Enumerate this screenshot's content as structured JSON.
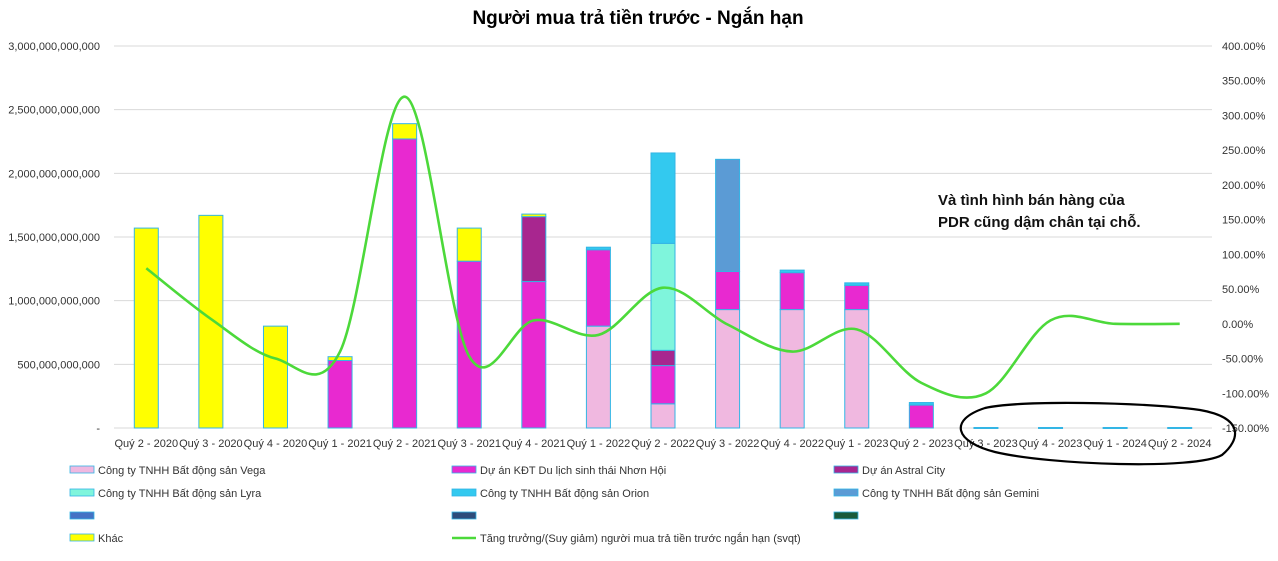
{
  "chart_data": {
    "type": "bar",
    "title": "Người mua trả tiền trước - Ngắn hạn",
    "categories": [
      "Quý 2 - 2020",
      "Quý 3 - 2020",
      "Quý 4 - 2020",
      "Quý 1 - 2021",
      "Quý 2 - 2021",
      "Quý 3 - 2021",
      "Quý 4 - 2021",
      "Quý 1 - 2022",
      "Quý 2 - 2022",
      "Quý 3 - 2022",
      "Quý 4 - 2022",
      "Quý 1 - 2023",
      "Quý 2 - 2023",
      "Quý 3 - 2023",
      "Quý 4 - 2023",
      "Quý 1 - 2024",
      "Quý 2 - 2024"
    ],
    "stacked": true,
    "ylim": [
      0,
      3000000000000
    ],
    "y_ticks": [
      "-",
      "500,000,000,000",
      "1,000,000,000,000",
      "1,500,000,000,000",
      "2,000,000,000,000",
      "2,500,000,000,000",
      "3,000,000,000,000"
    ],
    "y2lim": [
      -150,
      400
    ],
    "y2_ticks": [
      "-150.00%",
      "-100.00%",
      "-50.00%",
      "0.00%",
      "50.00%",
      "100.00%",
      "150.00%",
      "200.00%",
      "250.00%",
      "300.00%",
      "350.00%",
      "400.00%"
    ],
    "series": [
      {
        "name": "Công ty TNHH Bất động sản Vega",
        "color": "#f0b8e0",
        "values": [
          0,
          0,
          0,
          0,
          0,
          0,
          0,
          800000000000,
          190000000000,
          930000000000,
          930000000000,
          930000000000,
          0,
          0,
          0,
          0,
          0
        ]
      },
      {
        "name": "Dự án KĐT Du lịch sinh thái Nhơn Hội",
        "color": "#e829d0",
        "values": [
          0,
          0,
          0,
          530000000000,
          2270000000000,
          1310000000000,
          1150000000000,
          600000000000,
          300000000000,
          300000000000,
          290000000000,
          190000000000,
          180000000000,
          0,
          0,
          0,
          0
        ]
      },
      {
        "name": "Dự án Astral City",
        "color": "#a8268f",
        "values": [
          0,
          0,
          0,
          0,
          0,
          0,
          510000000000,
          0,
          120000000000,
          0,
          0,
          0,
          0,
          0,
          0,
          0,
          0
        ]
      },
      {
        "name": "Công ty TNHH Bất động sản Lyra",
        "color": "#7ff5dc",
        "values": [
          0,
          0,
          0,
          0,
          0,
          0,
          0,
          0,
          840000000000,
          0,
          0,
          0,
          0,
          0,
          0,
          0,
          0
        ]
      },
      {
        "name": "Công ty TNHH Bất động sản Orion",
        "color": "#33c9ef",
        "values": [
          0,
          0,
          0,
          0,
          0,
          0,
          0,
          20000000000,
          710000000000,
          0,
          20000000000,
          20000000000,
          20000000000,
          4000000000,
          4000000000,
          4000000000,
          4000000000
        ]
      },
      {
        "name": "Công ty TNHH Bất động sản Gemini",
        "color": "#5b9bd5",
        "values": [
          0,
          0,
          0,
          0,
          0,
          0,
          0,
          0,
          0,
          880000000000,
          0,
          0,
          0,
          0,
          0,
          0,
          0
        ]
      },
      {
        "name": "",
        "color": "#4472c4",
        "values": [
          0,
          0,
          0,
          0,
          0,
          0,
          0,
          0,
          0,
          0,
          0,
          0,
          0,
          0,
          0,
          0,
          0
        ]
      },
      {
        "name": "",
        "color": "#2e4d7b",
        "values": [
          0,
          0,
          0,
          0,
          0,
          0,
          0,
          0,
          0,
          0,
          0,
          0,
          0,
          0,
          0,
          0,
          0
        ]
      },
      {
        "name": "",
        "color": "#1a5a3a",
        "values": [
          0,
          0,
          0,
          0,
          0,
          0,
          0,
          0,
          0,
          0,
          0,
          0,
          0,
          0,
          0,
          0,
          0
        ]
      },
      {
        "name": "Khác",
        "color": "#ffff00",
        "values": [
          1570000000000,
          1670000000000,
          800000000000,
          30000000000,
          120000000000,
          260000000000,
          20000000000,
          0,
          0,
          0,
          0,
          0,
          0,
          0,
          0,
          0,
          0
        ]
      }
    ],
    "line": {
      "name": "Tăng trưởng/(Suy giảm) người mua trả tiền trước ngắn hạn (svqt)",
      "color": "#4cd93a",
      "axis": "secondary",
      "values": [
        80,
        7,
        -50,
        -40,
        327,
        -47,
        5,
        -16,
        52,
        -1,
        -40,
        -8,
        -85,
        -100,
        5,
        0,
        0
      ]
    },
    "annotation": {
      "line1": "Và tình hình bán hàng của",
      "line2": "PDR cũng dậm chân tại chỗ."
    },
    "legend_position": "bottom"
  }
}
